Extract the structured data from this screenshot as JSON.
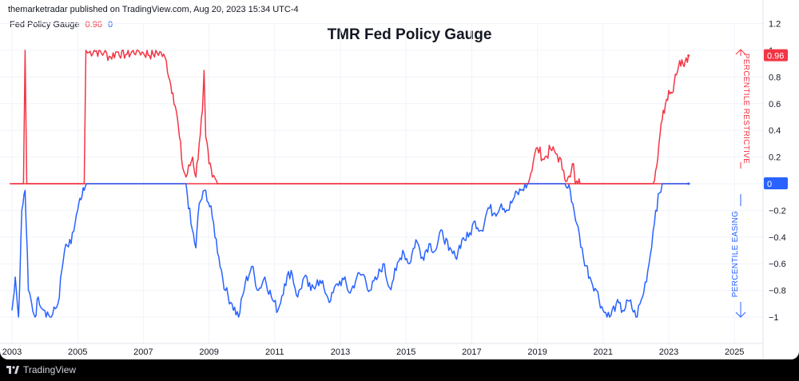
{
  "attribution": "themarketradar published on TradingView.com, Aug 20, 2023 15:34 UTC-4",
  "legend": {
    "name": "Fed Policy Gauge",
    "value_restrictive": "0.96",
    "value_easing": "0"
  },
  "footer": {
    "brand": "TradingView",
    "logo_icon": "tradingview-logo-icon"
  },
  "colors": {
    "restrictive": "#f23645",
    "easing": "#2962ff",
    "grid": "#f0f3fa",
    "zero_line": "#f23645"
  },
  "chart_data": {
    "type": "line",
    "title": "TMR Fed Policy Gauge",
    "xlabel": "",
    "ylabel": "",
    "ylim": [
      -1.08,
      1.2
    ],
    "xlim": [
      2003.0,
      2025.9
    ],
    "grid": true,
    "legend": "top-left",
    "x_ticks": [
      "2003",
      "2005",
      "2007",
      "2009",
      "2011",
      "2013",
      "2015",
      "2017",
      "2019",
      "2021",
      "2023",
      "2025"
    ],
    "y_ticks": [
      "1.2",
      "1",
      "0.8",
      "0.6",
      "0.4",
      "0.2",
      "0",
      "-0.2",
      "-0.4",
      "-0.6",
      "-0.8",
      "-1"
    ],
    "last_value_labels": {
      "restrictive": "0.96",
      "easing": "0"
    },
    "annotations": {
      "upper": "PERCENTILE RESTRICTIVE",
      "lower": "PERCENTILE EASING"
    },
    "series": [
      {
        "name": "Restrictive",
        "color": "#f23645",
        "x": [
          2003.0,
          2003.35,
          2003.4,
          2003.45,
          2003.5,
          2005.2,
          2005.25,
          2005.3,
          2005.5,
          2005.8,
          2006.0,
          2006.2,
          2006.5,
          2006.8,
          2007.0,
          2007.3,
          2007.5,
          2007.7,
          2007.8,
          2007.9,
          2008.0,
          2008.1,
          2008.2,
          2008.3,
          2008.5,
          2008.6,
          2008.7,
          2008.8,
          2008.85,
          2008.9,
          2009.0,
          2009.1,
          2009.3,
          2018.7,
          2018.8,
          2018.9,
          2019.0,
          2019.2,
          2019.4,
          2019.6,
          2019.8,
          2019.9,
          2020.0,
          2020.1,
          2020.15,
          2020.2,
          2020.3,
          2022.5,
          2022.6,
          2022.7,
          2022.8,
          2022.9,
          2023.0,
          2023.1,
          2023.2,
          2023.3,
          2023.4,
          2023.5,
          2023.6
        ],
        "y": [
          0,
          0,
          1.0,
          0,
          0,
          0,
          1.0,
          0.98,
          1.0,
          0.98,
          0.95,
          0.99,
          0.97,
          1.0,
          0.98,
          0.97,
          0.99,
          0.92,
          0.78,
          0.68,
          0.55,
          0.35,
          0.12,
          0.05,
          0.2,
          0.05,
          0.3,
          0.55,
          0.85,
          0.35,
          0.15,
          0.05,
          0,
          0,
          0.08,
          0.2,
          0.27,
          0.18,
          0.26,
          0.22,
          0.1,
          0.02,
          0.05,
          0.15,
          0,
          0.02,
          0,
          0,
          0.1,
          0.3,
          0.48,
          0.6,
          0.7,
          0.68,
          0.82,
          0.88,
          0.93,
          0.92,
          0.96
        ]
      },
      {
        "name": "Easing",
        "color": "#2962ff",
        "x": [
          2003.0,
          2003.1,
          2003.2,
          2003.3,
          2003.4,
          2003.5,
          2003.6,
          2003.7,
          2003.8,
          2004.0,
          2004.2,
          2004.4,
          2004.6,
          2004.8,
          2005.0,
          2005.1,
          2005.2,
          2005.3,
          2008.3,
          2008.45,
          2008.6,
          2008.7,
          2008.9,
          2009.1,
          2009.3,
          2009.5,
          2009.7,
          2009.9,
          2010.1,
          2010.3,
          2010.5,
          2010.7,
          2010.9,
          2011.1,
          2011.3,
          2011.5,
          2011.7,
          2011.9,
          2012.1,
          2012.3,
          2012.5,
          2012.7,
          2012.9,
          2013.1,
          2013.3,
          2013.5,
          2013.7,
          2013.9,
          2014.1,
          2014.3,
          2014.5,
          2014.7,
          2014.9,
          2015.1,
          2015.3,
          2015.5,
          2015.7,
          2015.9,
          2016.1,
          2016.3,
          2016.5,
          2016.7,
          2016.9,
          2017.1,
          2017.3,
          2017.5,
          2017.7,
          2017.9,
          2018.1,
          2018.3,
          2018.5,
          2018.7,
          2019.8,
          2020.0,
          2020.2,
          2020.4,
          2020.6,
          2020.8,
          2021.0,
          2021.2,
          2021.4,
          2021.6,
          2021.8,
          2022.0,
          2022.2,
          2022.4,
          2022.6,
          2022.8,
          2023.0,
          2023.6
        ],
        "y": [
          -0.95,
          -0.7,
          -1.0,
          -0.2,
          -0.05,
          -0.8,
          -0.9,
          -1.0,
          -0.85,
          -0.95,
          -1.0,
          -0.9,
          -0.5,
          -0.45,
          -0.2,
          -0.12,
          -0.05,
          0,
          0,
          -0.3,
          -0.48,
          -0.15,
          -0.05,
          -0.25,
          -0.55,
          -0.8,
          -0.9,
          -1.0,
          -0.75,
          -0.62,
          -0.8,
          -0.7,
          -0.85,
          -0.95,
          -0.75,
          -0.65,
          -0.85,
          -0.7,
          -0.8,
          -0.72,
          -0.78,
          -0.88,
          -0.75,
          -0.72,
          -0.82,
          -0.7,
          -0.68,
          -0.8,
          -0.72,
          -0.6,
          -0.78,
          -0.65,
          -0.5,
          -0.6,
          -0.42,
          -0.55,
          -0.45,
          -0.5,
          -0.35,
          -0.5,
          -0.55,
          -0.42,
          -0.4,
          -0.28,
          -0.35,
          -0.18,
          -0.22,
          -0.15,
          -0.2,
          -0.1,
          -0.05,
          0,
          0,
          -0.05,
          -0.3,
          -0.55,
          -0.7,
          -0.8,
          -0.95,
          -1.0,
          -0.9,
          -0.95,
          -0.88,
          -1.0,
          -0.85,
          -0.6,
          -0.2,
          0,
          0,
          0
        ]
      }
    ]
  }
}
